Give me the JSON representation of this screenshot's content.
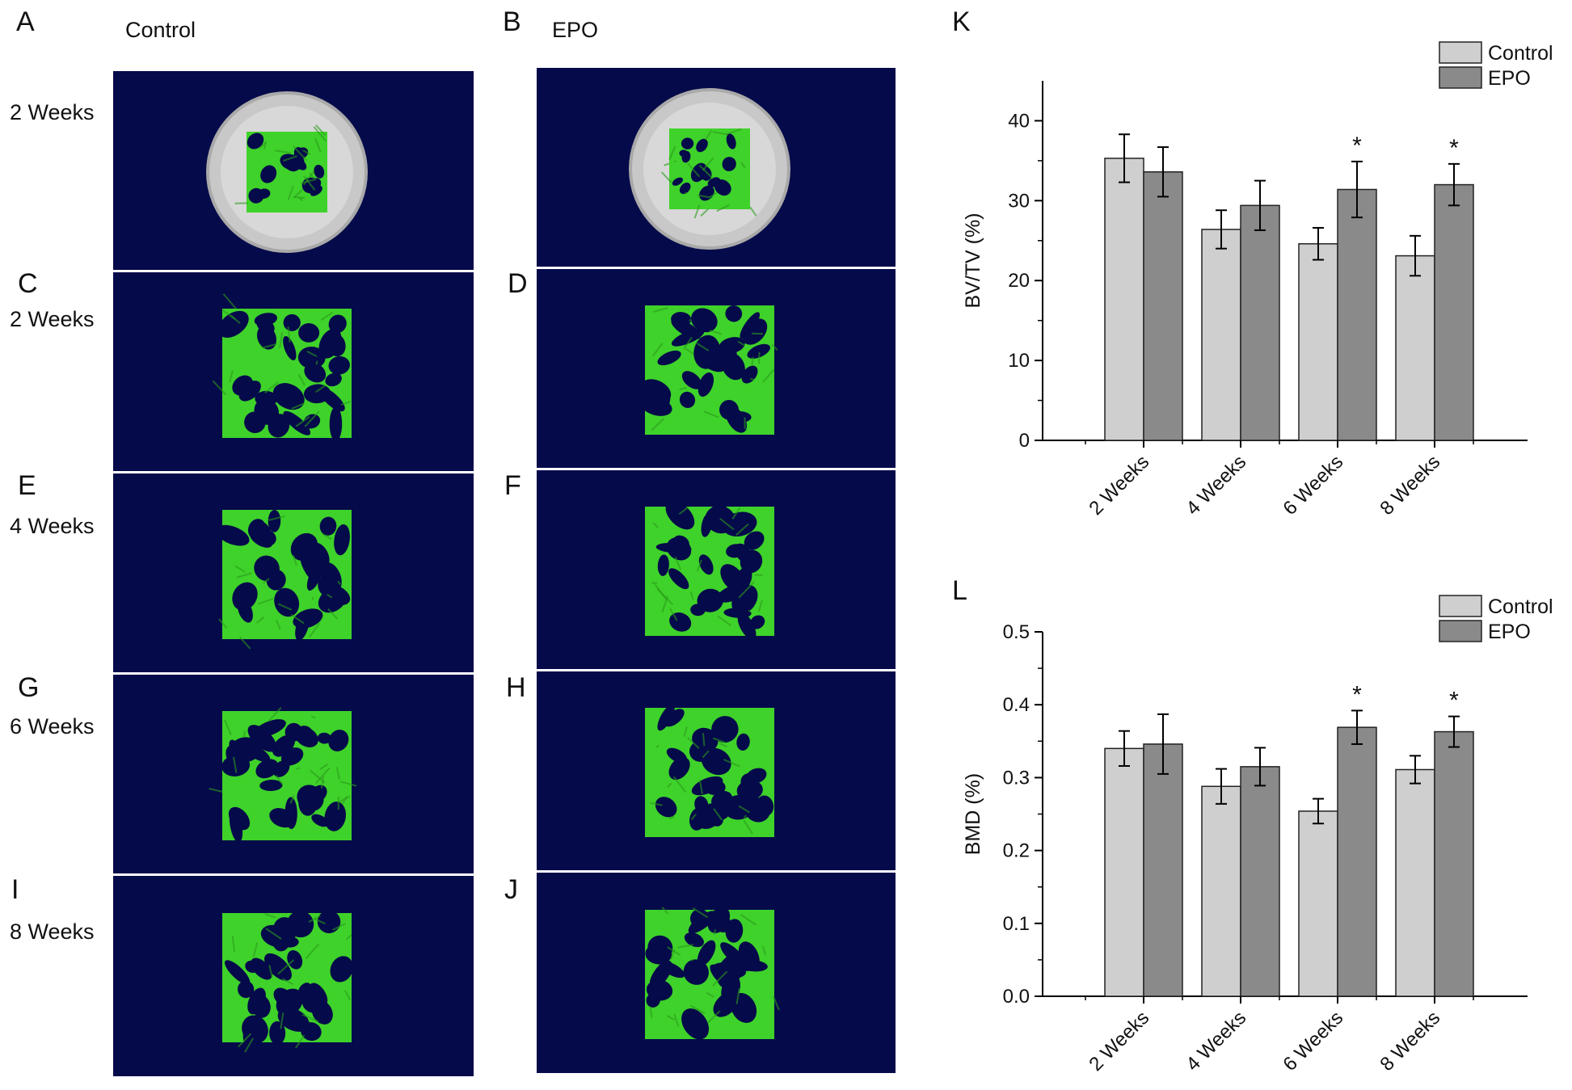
{
  "figure": {
    "panels": {
      "A": "A",
      "B": "B",
      "C": "C",
      "D": "D",
      "E": "E",
      "F": "F",
      "G": "G",
      "H": "H",
      "I": "I",
      "J": "J",
      "K": "K",
      "L": "L"
    },
    "column_titles": {
      "control": "Control",
      "epo": "EPO"
    },
    "row_labels": [
      "2 Weeks",
      "2 Weeks",
      "4 Weeks",
      "6 Weeks",
      "8 Weeks"
    ],
    "colors": {
      "scan_background": "#050a4a",
      "trabecular_bone": "#3fd22a",
      "cortical_ring": "#c8c8c8",
      "panel_divider": "#d9dcea"
    }
  },
  "chart_data": [
    {
      "type": "bar",
      "panel": "K",
      "categories": [
        "2 Weeks",
        "4 Weeks",
        "6 Weeks",
        "8 Weeks"
      ],
      "series": [
        {
          "name": "Control",
          "values": [
            35.3,
            26.4,
            24.6,
            23.1
          ],
          "errors": [
            3.0,
            2.4,
            2.0,
            2.5
          ],
          "color": "#cfcfcf"
        },
        {
          "name": "EPO",
          "values": [
            33.6,
            29.4,
            31.4,
            32.0
          ],
          "errors": [
            3.1,
            3.1,
            3.5,
            2.6
          ],
          "color": "#8a8a8a"
        }
      ],
      "significance": [
        "",
        "",
        "*",
        "*"
      ],
      "ylabel": "BV/TV (%)",
      "xlabel": "",
      "ylim": [
        0,
        45
      ],
      "yticks": [
        0,
        10,
        20,
        30,
        40
      ],
      "legend": "top-right",
      "grid": false
    },
    {
      "type": "bar",
      "panel": "L",
      "categories": [
        "2 Weeks",
        "4 Weeks",
        "6 Weeks",
        "8 Weeks"
      ],
      "series": [
        {
          "name": "Control",
          "values": [
            0.34,
            0.288,
            0.254,
            0.311
          ],
          "errors": [
            0.024,
            0.024,
            0.017,
            0.019
          ],
          "color": "#cfcfcf"
        },
        {
          "name": "EPO",
          "values": [
            0.346,
            0.315,
            0.369,
            0.363
          ],
          "errors": [
            0.041,
            0.026,
            0.023,
            0.021
          ],
          "color": "#8a8a8a"
        }
      ],
      "significance": [
        "",
        "",
        "*",
        "*"
      ],
      "ylabel": "BMD (%)",
      "xlabel": "",
      "ylim": [
        0,
        0.5
      ],
      "yticks": [
        "0.0",
        "0.1",
        "0.2",
        "0.3",
        "0.4",
        "0.5"
      ],
      "legend": "top-right",
      "grid": false
    }
  ]
}
